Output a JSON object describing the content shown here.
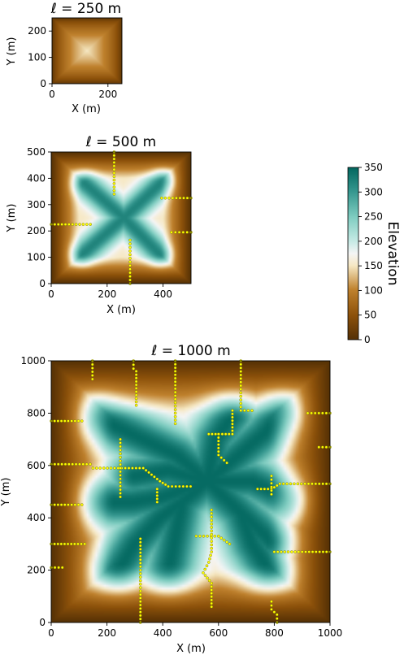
{
  "chart_data": [
    {
      "type": "heatmap",
      "title": "ℓ = 250 m",
      "xlabel": "X (m)",
      "ylabel": "Y (m)",
      "xlim": [
        0,
        250
      ],
      "ylim": [
        0,
        250
      ],
      "xticks": [
        0,
        200
      ],
      "yticks": [
        0,
        100,
        200
      ],
      "peak_elevation": 150,
      "valley_lines": []
    },
    {
      "type": "heatmap",
      "title": "ℓ = 500 m",
      "xlabel": "X (m)",
      "ylabel": "Y (m)",
      "xlim": [
        0,
        500
      ],
      "ylim": [
        0,
        500
      ],
      "xticks": [
        0,
        200,
        400
      ],
      "yticks": [
        0,
        100,
        200,
        300,
        400,
        500
      ],
      "peak_elevation": 320,
      "ridges": [
        [
          [
            120,
            380
          ],
          [
            260,
            250
          ],
          [
            390,
            110
          ]
        ],
        [
          [
            110,
            110
          ],
          [
            260,
            250
          ],
          [
            400,
            390
          ]
        ]
      ],
      "valley_lines": [
        [
          [
            225,
            500
          ],
          [
            225,
            340
          ]
        ],
        [
          [
            395,
            325
          ],
          [
            500,
            325
          ]
        ],
        [
          [
            0,
            225
          ],
          [
            140,
            225
          ]
        ],
        [
          [
            430,
            195
          ],
          [
            500,
            195
          ]
        ],
        [
          [
            282,
            165
          ],
          [
            282,
            0
          ]
        ]
      ]
    },
    {
      "type": "heatmap",
      "title": "ℓ = 1000 m",
      "xlabel": "X (m)",
      "ylabel": "Y (m)",
      "xlim": [
        0,
        1000
      ],
      "ylim": [
        0,
        1000
      ],
      "xticks": [
        0,
        200,
        400,
        600,
        800,
        1000
      ],
      "yticks": [
        0,
        200,
        400,
        600,
        800,
        1000
      ],
      "peak_elevation": 345,
      "ridges": [
        [
          [
            170,
            780
          ],
          [
            330,
            700
          ],
          [
            450,
            640
          ],
          [
            560,
            540
          ],
          [
            680,
            420
          ],
          [
            790,
            310
          ]
        ],
        [
          [
            240,
            200
          ],
          [
            300,
            300
          ],
          [
            390,
            400
          ],
          [
            470,
            460
          ],
          [
            560,
            540
          ],
          [
            650,
            620
          ],
          [
            760,
            720
          ],
          [
            830,
            800
          ]
        ],
        [
          [
            170,
            460
          ],
          [
            290,
            460
          ],
          [
            400,
            480
          ],
          [
            560,
            540
          ]
        ],
        [
          [
            300,
            560
          ],
          [
            420,
            580
          ],
          [
            560,
            540
          ]
        ],
        [
          [
            560,
            540
          ],
          [
            720,
            540
          ],
          [
            860,
            470
          ]
        ],
        [
          [
            560,
            540
          ],
          [
            590,
            700
          ],
          [
            650,
            790
          ]
        ],
        [
          [
            470,
            460
          ],
          [
            440,
            300
          ],
          [
            420,
            190
          ]
        ],
        [
          [
            680,
            420
          ],
          [
            720,
            300
          ],
          [
            780,
            200
          ]
        ]
      ],
      "valley_lines": [
        [
          [
            148,
            1000
          ],
          [
            148,
            930
          ]
        ],
        [
          [
            295,
            1000
          ],
          [
            295,
            970
          ],
          [
            305,
            960
          ],
          [
            305,
            830
          ]
        ],
        [
          [
            445,
            1000
          ],
          [
            445,
            760
          ]
        ],
        [
          [
            680,
            1000
          ],
          [
            680,
            810
          ],
          [
            720,
            810
          ]
        ],
        [
          [
            0,
            770
          ],
          [
            110,
            770
          ]
        ],
        [
          [
            920,
            800
          ],
          [
            1000,
            800
          ]
        ],
        [
          [
            960,
            670
          ],
          [
            1000,
            670
          ]
        ],
        [
          [
            0,
            605
          ],
          [
            140,
            605
          ]
        ],
        [
          [
            150,
            590
          ],
          [
            330,
            590
          ],
          [
            390,
            540
          ],
          [
            420,
            520
          ],
          [
            500,
            520
          ]
        ],
        [
          [
            248,
            700
          ],
          [
            248,
            480
          ]
        ],
        [
          [
            380,
            510
          ],
          [
            380,
            460
          ]
        ],
        [
          [
            565,
            720
          ],
          [
            650,
            720
          ],
          [
            650,
            810
          ]
        ],
        [
          [
            600,
            720
          ],
          [
            600,
            640
          ],
          [
            630,
            610
          ]
        ],
        [
          [
            740,
            510
          ],
          [
            790,
            510
          ],
          [
            820,
            530
          ],
          [
            1000,
            530
          ]
        ],
        [
          [
            790,
            560
          ],
          [
            790,
            490
          ]
        ],
        [
          [
            0,
            450
          ],
          [
            110,
            450
          ]
        ],
        [
          [
            0,
            300
          ],
          [
            120,
            300
          ]
        ],
        [
          [
            520,
            330
          ],
          [
            600,
            330
          ],
          [
            640,
            300
          ]
        ],
        [
          [
            575,
            430
          ],
          [
            575,
            270
          ],
          [
            565,
            230
          ],
          [
            545,
            190
          ],
          [
            575,
            150
          ],
          [
            575,
            60
          ]
        ],
        [
          [
            320,
            320
          ],
          [
            320,
            0
          ]
        ],
        [
          [
            800,
            270
          ],
          [
            1000,
            270
          ]
        ],
        [
          [
            0,
            210
          ],
          [
            40,
            210
          ]
        ],
        [
          [
            790,
            80
          ],
          [
            790,
            50
          ],
          [
            810,
            30
          ],
          [
            810,
            0
          ]
        ]
      ]
    }
  ],
  "colorbar": {
    "label": "Elevation",
    "min": 0,
    "max": 350,
    "ticks": [
      0,
      50,
      100,
      150,
      200,
      250,
      300,
      350
    ]
  }
}
